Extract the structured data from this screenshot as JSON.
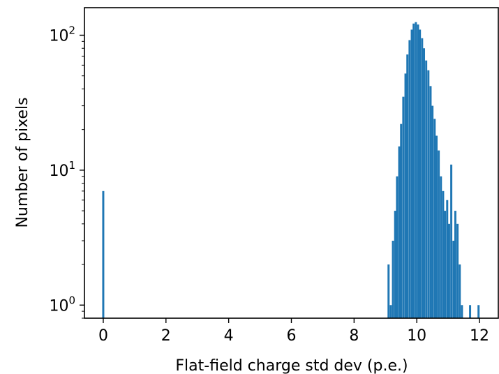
{
  "chart_data": {
    "type": "bar",
    "xlabel": "Flat-field charge std dev (p.e.)",
    "ylabel": "Number of pixels",
    "yscale": "log",
    "xlim": [
      -0.6,
      12.6
    ],
    "ylim": [
      0.8,
      160
    ],
    "x_ticks": [
      0,
      2,
      4,
      6,
      8,
      10,
      12
    ],
    "y_ticks": [
      {
        "value": 1,
        "base": "10",
        "exp": "0"
      },
      {
        "value": 10,
        "base": "10",
        "exp": "1"
      },
      {
        "value": 100,
        "base": "10",
        "exp": "2"
      }
    ],
    "bin_width": 0.066,
    "bar_color": "#1f77b4",
    "grid": false,
    "bins": [
      {
        "x": 0.0,
        "count": 7
      },
      {
        "x": 9.1,
        "count": 2
      },
      {
        "x": 9.17,
        "count": 1
      },
      {
        "x": 9.24,
        "count": 3
      },
      {
        "x": 9.31,
        "count": 5
      },
      {
        "x": 9.37,
        "count": 9
      },
      {
        "x": 9.44,
        "count": 15
      },
      {
        "x": 9.5,
        "count": 22
      },
      {
        "x": 9.57,
        "count": 35
      },
      {
        "x": 9.64,
        "count": 52
      },
      {
        "x": 9.7,
        "count": 72
      },
      {
        "x": 9.77,
        "count": 92
      },
      {
        "x": 9.84,
        "count": 110
      },
      {
        "x": 9.9,
        "count": 122
      },
      {
        "x": 9.97,
        "count": 125
      },
      {
        "x": 10.04,
        "count": 120
      },
      {
        "x": 10.1,
        "count": 110
      },
      {
        "x": 10.17,
        "count": 95
      },
      {
        "x": 10.23,
        "count": 80
      },
      {
        "x": 10.3,
        "count": 65
      },
      {
        "x": 10.37,
        "count": 55
      },
      {
        "x": 10.44,
        "count": 42
      },
      {
        "x": 10.5,
        "count": 30
      },
      {
        "x": 10.57,
        "count": 24
      },
      {
        "x": 10.63,
        "count": 18
      },
      {
        "x": 10.7,
        "count": 14
      },
      {
        "x": 10.77,
        "count": 9
      },
      {
        "x": 10.84,
        "count": 7
      },
      {
        "x": 10.9,
        "count": 5
      },
      {
        "x": 10.97,
        "count": 6
      },
      {
        "x": 11.03,
        "count": 4
      },
      {
        "x": 11.1,
        "count": 11
      },
      {
        "x": 11.17,
        "count": 3
      },
      {
        "x": 11.23,
        "count": 5
      },
      {
        "x": 11.3,
        "count": 4
      },
      {
        "x": 11.37,
        "count": 2
      },
      {
        "x": 11.44,
        "count": 1
      },
      {
        "x": 11.7,
        "count": 1
      },
      {
        "x": 11.97,
        "count": 1
      }
    ]
  }
}
